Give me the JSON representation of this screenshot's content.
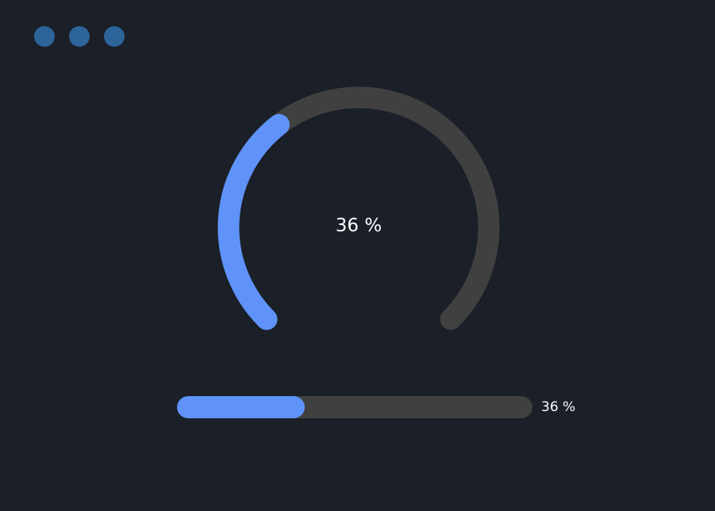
{
  "window_controls": [
    "dot-1",
    "dot-2",
    "dot-3"
  ],
  "gauge": {
    "value": 36,
    "label": "36 %",
    "track_color": "#404040",
    "fill_color": "#5f93fa"
  },
  "progress_bar": {
    "value": 36,
    "label": "36 %",
    "track_color": "#404040",
    "fill_color": "#5f93fa"
  },
  "colors": {
    "background": "#1a1f28",
    "window_dot": "#2d6499"
  }
}
